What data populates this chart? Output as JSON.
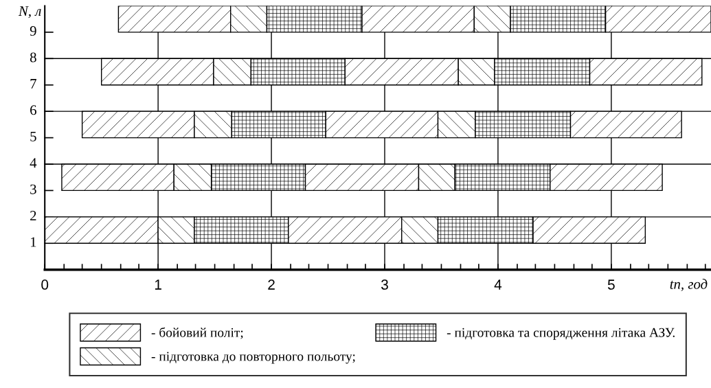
{
  "chart_data": {
    "type": "bar",
    "orientation": "horizontal",
    "xlabel": "tn, год",
    "ylabel": "N, л",
    "categories": [
      null,
      null,
      null,
      null,
      null
    ],
    "annotations": [
      "9",
      "8",
      "7",
      "6",
      "5",
      "4",
      "3",
      "2",
      "1"
    ],
    "series": [
      {
        "name": "- бойовий політ;",
        "color": "#000000",
        "base": [
          0.65,
          0.5,
          0.33,
          0.15,
          0
        ],
        "values": [
          0.99,
          0.99,
          0.99,
          0.99,
          1.0
        ]
      },
      {
        "name": "- підготовка до повторного польоту;",
        "color": "#000000",
        "base": [
          1.64,
          1.49,
          1.32,
          1.14,
          1.0
        ],
        "values": [
          0.32,
          0.33,
          0.33,
          0.33,
          0.32
        ]
      },
      {
        "name": "- підготовка та спорядження літака АЗУ.",
        "color": "#000000",
        "base": [
          1.96,
          1.82,
          1.65,
          1.47,
          1.32
        ],
        "values": [
          0.84,
          0.83,
          0.83,
          0.83,
          0.83
        ]
      },
      {
        "color": "#000000",
        "base": [
          2.8,
          2.65,
          2.48,
          2.3,
          2.15
        ],
        "values": [
          0.99,
          1.0,
          0.99,
          1.0,
          1.0
        ]
      },
      {
        "color": "#000000",
        "base": [
          3.79,
          3.65,
          3.47,
          3.3,
          3.15
        ],
        "values": [
          0.32,
          0.32,
          0.33,
          0.32,
          0.32
        ]
      },
      {
        "color": "#000000",
        "base": [
          4.11,
          3.97,
          3.8,
          3.62,
          3.47
        ],
        "values": [
          0.84,
          0.84,
          0.84,
          0.84,
          0.84
        ]
      },
      {
        "color": "#000000",
        "base": [
          4.95,
          4.81,
          4.64,
          4.46,
          4.31
        ],
        "values": [
          0.93,
          0.99,
          0.98,
          0.99,
          0.99
        ]
      }
    ],
    "xlim": [
      0,
      5.88
    ],
    "xticks": [
      0,
      {
        "value": 0.17,
        "label": null
      },
      {
        "value": 0.33,
        "label": null
      },
      {
        "value": 0.5,
        "label": null
      },
      {
        "value": 0.67,
        "label": null
      },
      {
        "value": 0.83,
        "label": null
      },
      1,
      {
        "value": 1.17,
        "label": null
      },
      {
        "value": 1.33,
        "label": null
      },
      {
        "value": 1.5,
        "label": null
      },
      {
        "value": 1.67,
        "label": null
      },
      {
        "value": 1.83,
        "label": null
      },
      2,
      {
        "value": 2.17,
        "label": null
      },
      {
        "value": 2.33,
        "label": null
      },
      {
        "value": 2.5,
        "label": null
      },
      {
        "value": 2.67,
        "label": null
      },
      {
        "value": 2.83,
        "label": null
      },
      3,
      {
        "value": 3.17,
        "label": null
      },
      {
        "value": 3.33,
        "label": null
      },
      {
        "value": 3.5,
        "label": null
      },
      {
        "value": 3.67,
        "label": null
      },
      {
        "value": 3.83,
        "label": null
      },
      4,
      {
        "value": 4.17,
        "label": null
      },
      {
        "value": 4.33,
        "label": null
      },
      {
        "value": 4.5,
        "label": null
      },
      {
        "value": 4.67,
        "label": null
      },
      {
        "value": 4.83,
        "label": null
      },
      5,
      {
        "value": 5.17,
        "label": null
      },
      {
        "value": 5.33,
        "label": null
      },
      {
        "value": 5.5,
        "label": null
      },
      {
        "value": 5.67,
        "label": null
      },
      {
        "value": 5.83,
        "label": null
      }
    ],
    "grid": true,
    "legend": "bottom"
  }
}
